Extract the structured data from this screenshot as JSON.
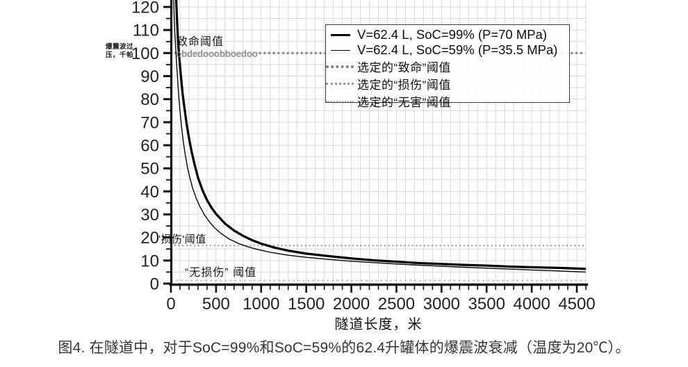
{
  "figure_caption": "图4. 在隧道中，对于SoC=99%和SoC=59%的62.4升罐体的爆震波衰减（温度为20℃）。",
  "chart_data": {
    "type": "line",
    "xlabel": "隧道长度，米",
    "ylabel": "爆震波过压，千帕",
    "ylabel_lines": [
      "爆震波过",
      "压，千帕"
    ],
    "xlim": [
      0,
      4600
    ],
    "ylim": [
      0,
      120
    ],
    "x_major_ticks": [
      0,
      500,
      1000,
      1500,
      2000,
      2500,
      3000,
      3500,
      4000,
      4500
    ],
    "x_minor_step": 100,
    "y_major_ticks": [
      0,
      10,
      20,
      30,
      40,
      50,
      60,
      70,
      80,
      90,
      100,
      110,
      120
    ],
    "y_minor_step": 5,
    "grid": {
      "x_step_m": 100,
      "y_step_kpa": 5,
      "on": true
    },
    "legend_position": "top-right-inside",
    "series": [
      {
        "name": "V=62.4 L, SoC=99% (P=70 MPa)",
        "style": "solid-thick",
        "points": [
          [
            40,
            160
          ],
          [
            50,
            134
          ],
          [
            60,
            121
          ],
          [
            70,
            112
          ],
          [
            80,
            104
          ],
          [
            95,
            97
          ],
          [
            110,
            90
          ],
          [
            130,
            82
          ],
          [
            150,
            76
          ],
          [
            175,
            69
          ],
          [
            200,
            63
          ],
          [
            230,
            57
          ],
          [
            260,
            52
          ],
          [
            300,
            46
          ],
          [
            350,
            40.5
          ],
          [
            400,
            36.2
          ],
          [
            450,
            32.9
          ],
          [
            500,
            30.2
          ],
          [
            600,
            26
          ],
          [
            700,
            23
          ],
          [
            800,
            20.7
          ],
          [
            900,
            18.8
          ],
          [
            1000,
            17.3
          ],
          [
            1150,
            15.6
          ],
          [
            1300,
            14.3
          ],
          [
            1500,
            13
          ],
          [
            1750,
            11.9
          ],
          [
            2000,
            10.9
          ],
          [
            2250,
            10.1
          ],
          [
            2500,
            9.5
          ],
          [
            2750,
            8.9
          ],
          [
            3000,
            8.5
          ],
          [
            3250,
            8.1
          ],
          [
            3500,
            7.8
          ],
          [
            3750,
            7.4
          ],
          [
            4000,
            7.1
          ],
          [
            4300,
            6.8
          ],
          [
            4600,
            6.4
          ]
        ]
      },
      {
        "name": "V=62.4 L, SoC=59% (P=35.5 MPa)",
        "style": "solid-thin",
        "points": [
          [
            25,
            135
          ],
          [
            32,
            120
          ],
          [
            40,
            111
          ],
          [
            50,
            104
          ],
          [
            60,
            97
          ],
          [
            72,
            90
          ],
          [
            85,
            82
          ],
          [
            100,
            75
          ],
          [
            120,
            67
          ],
          [
            140,
            60.5
          ],
          [
            160,
            55.5
          ],
          [
            185,
            50
          ],
          [
            210,
            45.8
          ],
          [
            240,
            41.5
          ],
          [
            280,
            37
          ],
          [
            320,
            33.5
          ],
          [
            370,
            29.9
          ],
          [
            420,
            27.1
          ],
          [
            480,
            24.3
          ],
          [
            550,
            21.9
          ],
          [
            650,
            19.2
          ],
          [
            750,
            17.4
          ],
          [
            850,
            16
          ],
          [
            950,
            14.9
          ],
          [
            1100,
            13.6
          ],
          [
            1300,
            12.3
          ],
          [
            1500,
            11.4
          ],
          [
            1750,
            10.5
          ],
          [
            2000,
            9.7
          ],
          [
            2250,
            9.1
          ],
          [
            2500,
            8.5
          ],
          [
            2750,
            8
          ],
          [
            3000,
            7.5
          ],
          [
            3250,
            7.1
          ],
          [
            3500,
            6.7
          ],
          [
            3750,
            6.3
          ],
          [
            4000,
            5.9
          ],
          [
            4300,
            5.5
          ],
          [
            4600,
            5
          ]
        ]
      }
    ],
    "thresholds": [
      {
        "label": "选定的“致命”阈值",
        "value_kpa": 100,
        "style": "dots-dark"
      },
      {
        "label": "选定的“损伤”阈值",
        "value_kpa": 16.5,
        "style": "dots-medium"
      },
      {
        "label": "选定的“无害”阈值",
        "value_kpa": 1.35,
        "style": "dots-light"
      }
    ],
    "annotations": {
      "lethal": "致命阈值",
      "lethal_artifact": "obdedooobboedoo",
      "damage": "'损伤'阈值",
      "no_harm": "“无损伤” 阈值"
    }
  },
  "legend": {
    "items": [
      {
        "label": "V=62.4 L, SoC=99% (P=70 MPa)",
        "sample": "line-thick",
        "cjk": false
      },
      {
        "label": "V=62.4 L, SoC=59% (P=35.5 MPa)",
        "sample": "line-thin",
        "cjk": false
      },
      {
        "label": "选定的“致命”阈值",
        "sample": "dots-dark",
        "cjk": true
      },
      {
        "label": "选定的“损伤”阈值",
        "sample": "dots-medium",
        "cjk": true
      },
      {
        "label": "选定的“无害”阈值",
        "sample": "dots-light",
        "cjk": true
      }
    ]
  },
  "colors": {
    "curve": "#000000",
    "lethal_dots": "#8a8a8a",
    "damage_dots": "#9c9c9c",
    "noharm_dots": "#bdbdbd",
    "grid": "#d8d8d8",
    "axis": "#111111",
    "tick_label": "#222222",
    "caption": "#343434"
  }
}
